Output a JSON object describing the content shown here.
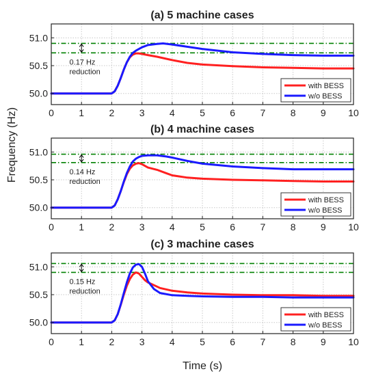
{
  "figure": {
    "ylabel": "Frequency (Hz)",
    "xlabel": "Time (s)"
  },
  "colors": {
    "with_bess": "#ff2020",
    "wo_bess": "#1a1aff",
    "threshold": "#008000",
    "grid": "#c8c8c8"
  },
  "chart_data": [
    {
      "type": "line",
      "title": "(a) 5 machine cases",
      "xlabel": "Time (s)",
      "ylabel": "Frequency (Hz)",
      "xlim": [
        0,
        10
      ],
      "ylim": [
        49.8,
        51.25
      ],
      "xticks": [
        "0",
        "1",
        "2",
        "3",
        "4",
        "5",
        "6",
        "7",
        "8",
        "9",
        "10"
      ],
      "yticks": [
        "50.0",
        "50.5",
        "51.0"
      ],
      "grid": true,
      "legend": "bottom-right",
      "reference_lines": [
        50.9,
        50.73
      ],
      "annotation": [
        "0.17 Hz",
        "reduction"
      ],
      "series": [
        {
          "name": "with BESS",
          "color": "red",
          "x": [
            0,
            2,
            2.1,
            2.2,
            2.3,
            2.4,
            2.5,
            2.6,
            2.7,
            2.8,
            2.9,
            3.0,
            3.2,
            3.5,
            4,
            4.5,
            5,
            6,
            7,
            8,
            9,
            10
          ],
          "y": [
            50.0,
            50.0,
            50.04,
            50.14,
            50.28,
            50.43,
            50.56,
            50.65,
            50.7,
            50.72,
            50.72,
            50.71,
            50.69,
            50.66,
            50.6,
            50.55,
            50.52,
            50.49,
            50.47,
            50.46,
            50.45,
            50.45
          ]
        },
        {
          "name": "w/o BESS",
          "color": "blue",
          "x": [
            0,
            2,
            2.1,
            2.2,
            2.3,
            2.4,
            2.5,
            2.6,
            2.7,
            2.8,
            3.0,
            3.2,
            3.5,
            3.7,
            4,
            4.5,
            5,
            6,
            7,
            8,
            9,
            10
          ],
          "y": [
            50.0,
            50.0,
            50.04,
            50.14,
            50.28,
            50.43,
            50.56,
            50.66,
            50.73,
            50.77,
            50.83,
            50.87,
            50.89,
            50.9,
            50.88,
            50.84,
            50.8,
            50.74,
            50.71,
            50.69,
            50.68,
            50.68
          ]
        }
      ]
    },
    {
      "type": "line",
      "title": "(b) 4 machine cases",
      "xlabel": "Time (s)",
      "ylabel": "Frequency (Hz)",
      "xlim": [
        0,
        10
      ],
      "ylim": [
        49.8,
        51.25
      ],
      "xticks": [
        "0",
        "1",
        "2",
        "3",
        "4",
        "5",
        "6",
        "7",
        "8",
        "9",
        "10"
      ],
      "yticks": [
        "50.0",
        "50.5",
        "51.0"
      ],
      "grid": true,
      "legend": "bottom-right",
      "reference_lines": [
        50.96,
        50.81
      ],
      "annotation": [
        "0.14 Hz",
        "reduction"
      ],
      "series": [
        {
          "name": "with BESS",
          "color": "red",
          "x": [
            0,
            2,
            2.1,
            2.2,
            2.3,
            2.4,
            2.5,
            2.6,
            2.7,
            2.8,
            2.9,
            3.0,
            3.2,
            3.5,
            3.8,
            4,
            4.5,
            5,
            6,
            7,
            8,
            9,
            10
          ],
          "y": [
            50.0,
            50.0,
            50.04,
            50.15,
            50.3,
            50.46,
            50.6,
            50.7,
            50.76,
            50.79,
            50.8,
            50.78,
            50.72,
            50.68,
            50.62,
            50.58,
            50.54,
            50.52,
            50.5,
            50.49,
            50.48,
            50.47,
            50.47
          ]
        },
        {
          "name": "w/o BESS",
          "color": "blue",
          "x": [
            0,
            2,
            2.1,
            2.2,
            2.3,
            2.4,
            2.5,
            2.6,
            2.7,
            2.8,
            2.9,
            3.0,
            3.2,
            3.5,
            3.8,
            4,
            4.5,
            5,
            6,
            7,
            8,
            9,
            10
          ],
          "y": [
            50.0,
            50.0,
            50.04,
            50.15,
            50.3,
            50.47,
            50.62,
            50.74,
            50.83,
            50.88,
            50.91,
            50.93,
            50.94,
            50.94,
            50.92,
            50.9,
            50.84,
            50.79,
            50.74,
            50.71,
            50.69,
            50.69,
            50.69
          ]
        }
      ]
    },
    {
      "type": "line",
      "title": "(c) 3 machine cases",
      "xlabel": "Time (s)",
      "ylabel": "Frequency (Hz)",
      "xlim": [
        0,
        10
      ],
      "ylim": [
        49.8,
        51.25
      ],
      "xticks": [
        "0",
        "1",
        "2",
        "3",
        "4",
        "5",
        "6",
        "7",
        "8",
        "9",
        "10"
      ],
      "yticks": [
        "50.0",
        "50.5",
        "51.0"
      ],
      "grid": true,
      "legend": "bottom-right",
      "reference_lines": [
        51.06,
        50.9
      ],
      "annotation": [
        "0.15 Hz",
        "reduction"
      ],
      "series": [
        {
          "name": "with BESS",
          "color": "red",
          "x": [
            0,
            2,
            2.1,
            2.2,
            2.3,
            2.4,
            2.5,
            2.6,
            2.7,
            2.8,
            2.9,
            3.0,
            3.1,
            3.2,
            3.4,
            3.6,
            4,
            4.5,
            5,
            6,
            7,
            8,
            9,
            10
          ],
          "y": [
            50.0,
            50.0,
            50.04,
            50.15,
            50.32,
            50.5,
            50.66,
            50.78,
            50.86,
            50.9,
            50.88,
            50.82,
            50.76,
            50.72,
            50.67,
            50.62,
            50.57,
            50.54,
            50.52,
            50.5,
            50.49,
            50.49,
            50.48,
            50.48
          ]
        },
        {
          "name": "w/o BESS",
          "color": "blue",
          "x": [
            0,
            2,
            2.1,
            2.2,
            2.3,
            2.4,
            2.5,
            2.6,
            2.7,
            2.8,
            2.9,
            3.0,
            3.1,
            3.2,
            3.4,
            3.6,
            4,
            4.5,
            5,
            6,
            7,
            8,
            9,
            10
          ],
          "y": [
            50.0,
            50.0,
            50.04,
            50.15,
            50.33,
            50.53,
            50.72,
            50.88,
            50.99,
            51.04,
            51.05,
            51.0,
            50.88,
            50.74,
            50.6,
            50.53,
            50.49,
            50.48,
            50.47,
            50.46,
            50.46,
            50.45,
            50.45,
            50.45
          ]
        }
      ]
    }
  ]
}
